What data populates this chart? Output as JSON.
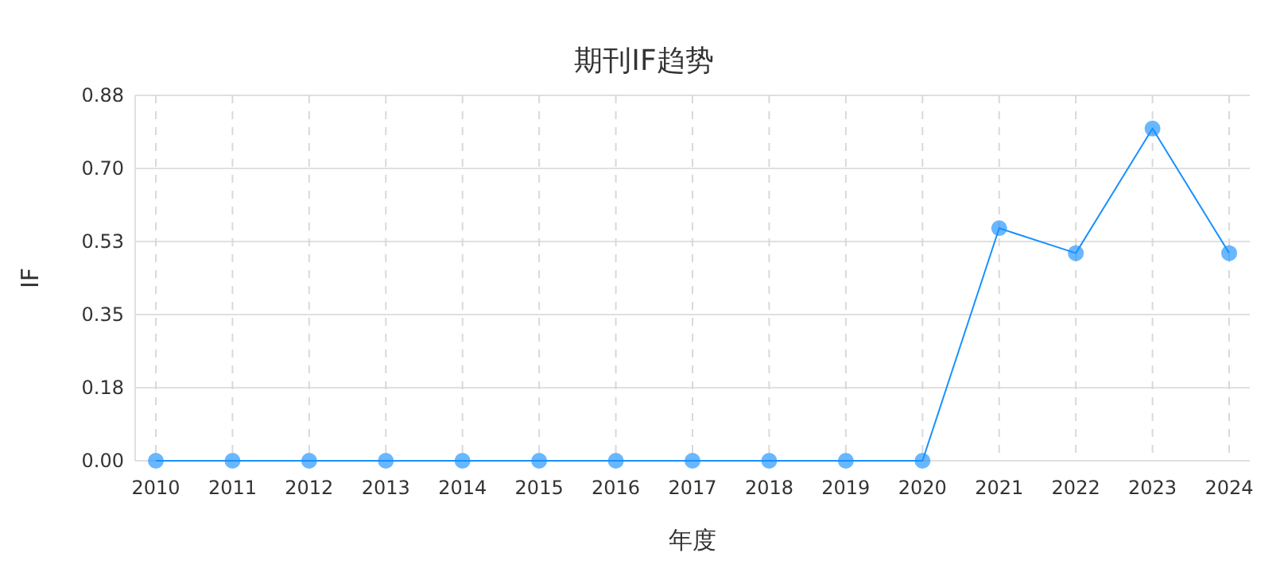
{
  "chart_data": {
    "type": "line",
    "title": "期刊IF趋势",
    "xlabel": "年度",
    "ylabel": "IF",
    "categories": [
      "2010",
      "2011",
      "2012",
      "2013",
      "2014",
      "2015",
      "2016",
      "2017",
      "2018",
      "2019",
      "2020",
      "2021",
      "2022",
      "2023",
      "2024"
    ],
    "series": [
      {
        "color": "#1890ff",
        "values": [
          0,
          0,
          0,
          0,
          0,
          0,
          0,
          0,
          0,
          0,
          0,
          0.56,
          0.5,
          0.8,
          0.5
        ]
      }
    ],
    "ylim": [
      0,
      0.88
    ],
    "yticks": [
      {
        "value": 0,
        "label": "0.00"
      },
      {
        "value": 0.176,
        "label": "0.18"
      },
      {
        "value": 0.352,
        "label": "0.35"
      },
      {
        "value": 0.528,
        "label": "0.53"
      },
      {
        "value": 0.704,
        "label": "0.70"
      },
      {
        "value": 0.88,
        "label": "0.88"
      }
    ],
    "grid": true,
    "marker": "circle",
    "line_style": "solid"
  }
}
